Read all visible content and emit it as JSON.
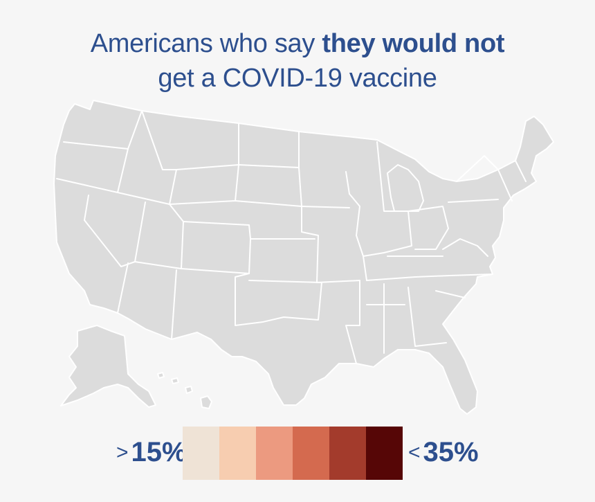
{
  "title": {
    "prefix": "Americans who say ",
    "bold": "they would not",
    "line2": "get a COVID-19 vaccine"
  },
  "map": {
    "land_color": "#dcdcdc",
    "border_color": "#ffffff"
  },
  "legend": {
    "min_sign": ">",
    "min_value": "15%",
    "max_sign": "<",
    "max_value": "35%",
    "colors": [
      "#efe3d6",
      "#f7cdb0",
      "#ec9a80",
      "#d46a4f",
      "#a33b2c",
      "#560606"
    ]
  }
}
